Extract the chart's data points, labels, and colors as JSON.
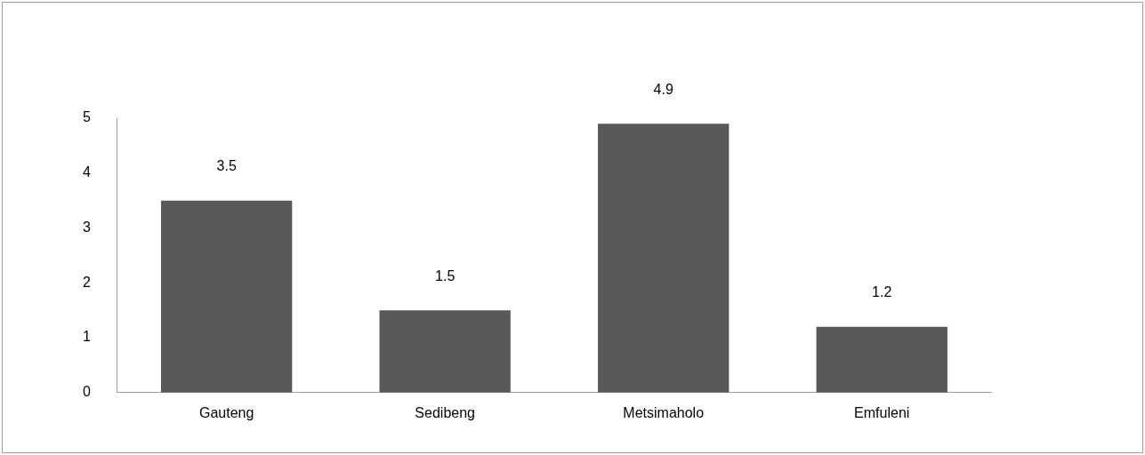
{
  "chart_data": {
    "type": "bar",
    "categories": [
      "Gauteng",
      "Sedibeng",
      "Metsimaholo",
      "Emfuleni"
    ],
    "values": [
      3.5,
      1.5,
      4.9,
      1.2
    ],
    "color": "#595959",
    "ylim": [
      0,
      5
    ],
    "yticks": [
      0,
      1,
      2,
      3,
      4,
      5
    ],
    "grid": false,
    "legend": false,
    "data_labels": true
  }
}
